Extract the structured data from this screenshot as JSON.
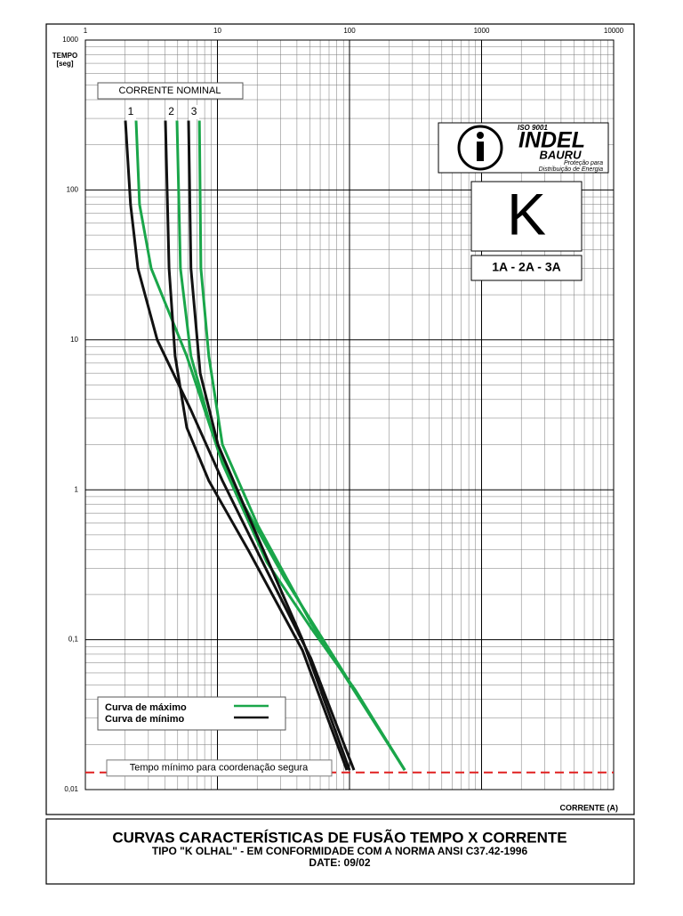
{
  "chart_data": {
    "type": "line",
    "title": "CURVAS CARACTERÍSTICAS DE FUSÃO TEMPO X CORRENTE",
    "subtitle": "TIPO \"K OLHAL\" - EM CONFORMIDADE COM A NORMA ANSI C37.42-1996",
    "date": "DATE: 09/02",
    "y_label": [
      "TEMPO",
      "[seg]"
    ],
    "x_label": "CORRENTE (A)",
    "log_x": true,
    "log_y": true,
    "grid": true,
    "xlim": [
      1,
      10000
    ],
    "ylim": [
      0.01,
      1000
    ],
    "xticks": [
      1,
      10,
      100,
      1000,
      10000
    ],
    "yticks": [
      {
        "value": 0.01,
        "label": "0,01"
      },
      {
        "value": 0.1,
        "label": "0,1"
      },
      1,
      10,
      100,
      1000
    ],
    "nominal_header": "CORRENTE NOMINAL",
    "legend": {
      "max": {
        "name": "Curva de máximo",
        "color": "#1aa64a"
      },
      "min": {
        "name": "Curva de mínimo",
        "color": "#111111"
      }
    },
    "fuses": [
      {
        "label": "1",
        "max": {
          "x": [
            2.42,
            2.57,
            3.15,
            5.86,
            10.9,
            23.6,
            51,
            111,
            262
          ],
          "values": [
            290,
            80,
            30,
            7.8,
            1.5,
            0.33,
            0.12,
            0.046,
            0.0135
          ]
        },
        "min": {
          "x": [
            2.01,
            2.2,
            2.5,
            3.5,
            6.3,
            10.9,
            23.6,
            51,
            108
          ],
          "values": [
            290,
            80,
            30,
            10,
            3.4,
            1.15,
            0.29,
            0.075,
            0.0135
          ]
        }
      },
      {
        "label": "2",
        "max": {
          "x": [
            4.94,
            5.25,
            6.3,
            9.3,
            14.8,
            32,
            262
          ],
          "values": [
            290,
            30,
            7.8,
            2.3,
            0.88,
            0.26,
            0.0135
          ]
        },
        "min": {
          "x": [
            4.04,
            4.3,
            4.78,
            5.86,
            8.6,
            17.3,
            44,
            95.5
          ],
          "values": [
            290,
            30,
            7.8,
            2.6,
            1.15,
            0.39,
            0.085,
            0.0135
          ]
        }
      },
      {
        "label": "3",
        "max": {
          "x": [
            7.3,
            7.5,
            8.6,
            10.9,
            20.2,
            51,
            262
          ],
          "values": [
            290,
            30,
            7.8,
            2,
            0.58,
            0.13,
            0.0135
          ]
        },
        "min": {
          "x": [
            6.04,
            6.3,
            7.4,
            10.1,
            17.3,
            44,
            100
          ],
          "values": [
            290,
            30,
            6,
            2,
            0.66,
            0.1,
            0.0135
          ]
        }
      }
    ],
    "reference_line": {
      "value": 0.013,
      "color": "#e02020",
      "label": "Tempo mínimo para coordenação segura"
    },
    "logo": {
      "iso": "ISO 9001",
      "brand": "INDEL",
      "city": "BAURU",
      "tagline": [
        "Proteção para",
        "Distribuição de Energia"
      ]
    },
    "fuse_type": "K",
    "ratings": "1A - 2A - 3A"
  }
}
